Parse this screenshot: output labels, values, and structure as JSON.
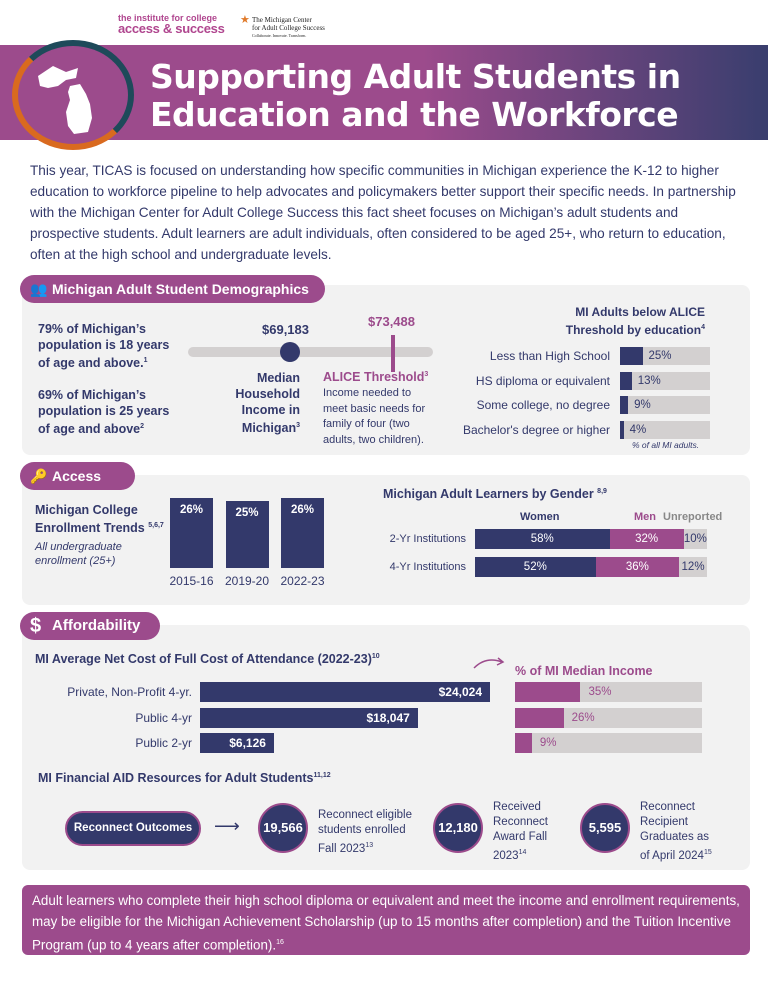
{
  "logos": {
    "ticas_line1": "the institute for college",
    "ticas_line2": "access & success",
    "mcacs_line1": "The Michigan Center",
    "mcacs_line2": "for Adult College Success",
    "mcacs_tagline": "Collaborate. Innovate. Transform."
  },
  "header": {
    "title_line1": "Supporting Adult Students in",
    "title_line2": "Education and the Workforce"
  },
  "intro": "This year, TICAS is focused on understanding how specific communities in Michigan experience the K-12 to higher education to workforce pipeline to help advocates and policymakers better support their specific needs. In partnership with the Michigan Center for Adult College Success this fact sheet focuses on Michigan’s adult students and prospective students. Adult learners are adult individuals, often considered to be aged 25+, who return to education, often at the high school and undergraduate levels.",
  "colors": {
    "purple": "#9c4b8c",
    "navy": "#33396b",
    "panel": "#f2f2f2",
    "bar_gray": "#d3d0d0"
  },
  "demographics": {
    "heading": "Michigan Adult Student Demographics",
    "icon": "people-icon",
    "stat1": "79% of Michigan’s population is 18 years of age and above.",
    "stat1_note": "1",
    "stat2": "69% of Michigan’s population is 25 years of age and above",
    "stat2_note": "2",
    "median_value": "$69,183",
    "median_label": "Median Household Income in Michigan",
    "median_note": "3",
    "alice_value": "$73,488",
    "alice_label": "ALICE Threshold",
    "alice_note": "3",
    "alice_desc": "Income needed to meet basic needs for family of four (two adults, two children).",
    "alice_chart": {
      "title": "MI Adults below ALICE Threshold by education",
      "title_note": "4",
      "footnote": "% of all MI adults.",
      "rows": [
        {
          "label": "Less than High School",
          "value": 25,
          "text": "25%"
        },
        {
          "label": "HS diploma or equivalent",
          "value": 13,
          "text": "13%"
        },
        {
          "label": "Some college, no degree",
          "value": 9,
          "text": "9%"
        },
        {
          "label": "Bachelor's degree or higher",
          "value": 4,
          "text": "4%"
        }
      ]
    }
  },
  "access": {
    "heading": "Access",
    "icon": "key-icon",
    "enroll_title": "Michigan College Enrollment Trends",
    "enroll_note": "5,6,7",
    "enroll_sub": "All undergraduate enrollment (25+)",
    "enroll_bars": [
      {
        "year": "2015-16",
        "value": 26,
        "text": "26%"
      },
      {
        "year": "2019-20",
        "value": 25,
        "text": "25%"
      },
      {
        "year": "2022-23",
        "value": 26,
        "text": "26%"
      }
    ],
    "gender_title": "Michigan Adult Learners by Gender",
    "gender_note": "8,9",
    "legend": {
      "women": "Women",
      "men": "Men",
      "unreported": "Unreported"
    },
    "gender_rows": [
      {
        "label": "2-Yr Institutions",
        "women": 58,
        "men": 32,
        "unreported": 10
      },
      {
        "label": "4-Yr Institutions",
        "women": 52,
        "men": 36,
        "unreported": 12
      }
    ]
  },
  "affordability": {
    "heading": "Affordability",
    "icon": "dollar-icon",
    "cost_title": "MI Average Net Cost of Full Cost of Attendance (2022-23)",
    "cost_note": "10",
    "pct_title": "% of MI Median Income",
    "cost_rows": [
      {
        "label": "Private, Non-Profit 4-yr.",
        "value": 24024,
        "text": "$24,024",
        "pct": 35,
        "pct_text": "35%"
      },
      {
        "label": "Public 4-yr",
        "value": 18047,
        "text": "$18,047",
        "pct": 26,
        "pct_text": "26%"
      },
      {
        "label": "Public 2-yr",
        "value": 6126,
        "text": "$6,126",
        "pct": 9,
        "pct_text": "9%"
      }
    ],
    "aid_title": "MI Financial AID Resources for Adult Students",
    "aid_note": "11,12",
    "outcomes_label": "Reconnect Outcomes",
    "outcomes": [
      {
        "number": "19,566",
        "text": "Reconnect eligible students enrolled Fall 2023",
        "note": "13"
      },
      {
        "number": "12,180",
        "text": "Received Reconnect Award Fall 2023",
        "note": "14"
      },
      {
        "number": "5,595",
        "text": "Reconnect Recipient Graduates as of April 2024",
        "note": "15"
      }
    ]
  },
  "footer": {
    "text": "Adult learners who complete their high school diploma or equivalent and meet the income and enrollment requirements, may be eligible for the Michigan Achievement Scholarship (up to 15 months after completion) and the Tuition Incentive Program (up to 4 years after completion).",
    "note": "16"
  }
}
